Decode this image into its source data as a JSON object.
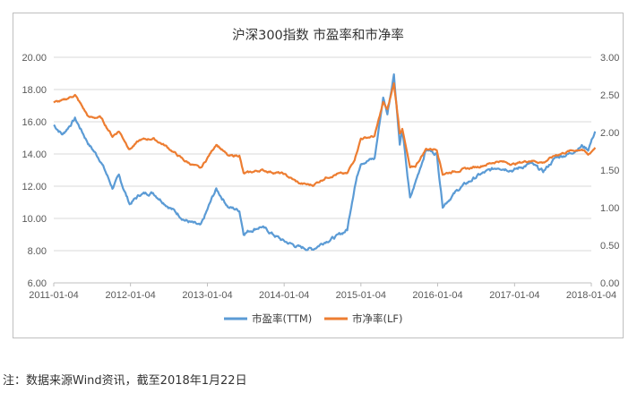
{
  "chart_data": {
    "type": "line",
    "title": "沪深300指数 市盈率和市净率",
    "x_axis": {
      "type": "date",
      "range": [
        "2011-01-04",
        "2018-01-22"
      ],
      "tick_labels": [
        "2011-01-04",
        "2012-01-04",
        "2013-01-04",
        "2014-01-04",
        "2015-01-04",
        "2016-01-04",
        "2017-01-04",
        "2018-01-04"
      ]
    },
    "y_left": {
      "range": [
        6,
        20
      ],
      "tick_labels": [
        "6.00",
        "8.00",
        "10.00",
        "12.00",
        "14.00",
        "16.00",
        "18.00",
        "20.00"
      ]
    },
    "y_right": {
      "range": [
        0,
        3
      ],
      "tick_labels": [
        "0.00",
        "0.50",
        "1.00",
        "1.50",
        "2.00",
        "2.50",
        "3.00"
      ]
    },
    "grid": true,
    "legend": "bottom",
    "series": [
      {
        "name": "市盈率(TTM)",
        "axis": "left",
        "color": "#5b9bd5",
        "points": [
          [
            "2011-01-04",
            15.8
          ],
          [
            "2011-02-15",
            15.2
          ],
          [
            "2011-04-15",
            16.2
          ],
          [
            "2011-06-20",
            14.6
          ],
          [
            "2011-08-15",
            13.6
          ],
          [
            "2011-10-10",
            11.9
          ],
          [
            "2011-11-10",
            12.6
          ],
          [
            "2011-12-31",
            10.9
          ],
          [
            "2012-02-20",
            11.5
          ],
          [
            "2012-04-20",
            11.6
          ],
          [
            "2012-06-20",
            10.9
          ],
          [
            "2012-09-20",
            9.9
          ],
          [
            "2012-12-03",
            9.5
          ],
          [
            "2013-01-31",
            11.4
          ],
          [
            "2013-02-15",
            11.8
          ],
          [
            "2013-04-15",
            10.7
          ],
          [
            "2013-06-05",
            10.5
          ],
          [
            "2013-06-25",
            9.1
          ],
          [
            "2013-09-15",
            9.5
          ],
          [
            "2013-12-31",
            8.6
          ],
          [
            "2014-03-20",
            8.2
          ],
          [
            "2014-05-20",
            8.1
          ],
          [
            "2014-07-20",
            8.6
          ],
          [
            "2014-09-15",
            8.9
          ],
          [
            "2014-10-31",
            9.3
          ],
          [
            "2014-12-05",
            12.0
          ],
          [
            "2015-01-04",
            13.5
          ],
          [
            "2015-03-10",
            13.7
          ],
          [
            "2015-04-20",
            17.5
          ],
          [
            "2015-05-10",
            16.5
          ],
          [
            "2015-06-10",
            19.0
          ],
          [
            "2015-07-08",
            14.6
          ],
          [
            "2015-07-20",
            15.5
          ],
          [
            "2015-08-26",
            11.2
          ],
          [
            "2015-09-20",
            12.2
          ],
          [
            "2015-11-10",
            14.3
          ],
          [
            "2015-12-31",
            14.0
          ],
          [
            "2016-01-28",
            10.8
          ],
          [
            "2016-04-20",
            11.9
          ],
          [
            "2016-07-20",
            12.7
          ],
          [
            "2016-10-20",
            13.2
          ],
          [
            "2016-12-31",
            13.0
          ],
          [
            "2017-03-20",
            13.4
          ],
          [
            "2017-05-20",
            12.9
          ],
          [
            "2017-07-20",
            13.8
          ],
          [
            "2017-09-20",
            14.0
          ],
          [
            "2017-11-20",
            14.5
          ],
          [
            "2017-12-20",
            14.3
          ],
          [
            "2018-01-22",
            15.4
          ]
        ]
      },
      {
        "name": "市净率(LF)",
        "axis": "right",
        "color": "#ed7d31",
        "points": [
          [
            "2011-01-04",
            2.4
          ],
          [
            "2011-02-15",
            2.42
          ],
          [
            "2011-04-15",
            2.5
          ],
          [
            "2011-06-20",
            2.2
          ],
          [
            "2011-08-15",
            2.2
          ],
          [
            "2011-10-10",
            1.95
          ],
          [
            "2011-11-10",
            2.02
          ],
          [
            "2011-12-31",
            1.78
          ],
          [
            "2012-02-20",
            1.9
          ],
          [
            "2012-04-20",
            1.92
          ],
          [
            "2012-06-20",
            1.82
          ],
          [
            "2012-09-20",
            1.62
          ],
          [
            "2012-12-03",
            1.52
          ],
          [
            "2013-01-31",
            1.78
          ],
          [
            "2013-02-15",
            1.85
          ],
          [
            "2013-04-15",
            1.68
          ],
          [
            "2013-06-05",
            1.7
          ],
          [
            "2013-06-25",
            1.45
          ],
          [
            "2013-09-15",
            1.5
          ],
          [
            "2013-12-31",
            1.45
          ],
          [
            "2014-03-20",
            1.32
          ],
          [
            "2014-05-20",
            1.3
          ],
          [
            "2014-07-20",
            1.4
          ],
          [
            "2014-09-15",
            1.45
          ],
          [
            "2014-10-31",
            1.45
          ],
          [
            "2014-12-05",
            1.65
          ],
          [
            "2015-01-04",
            1.92
          ],
          [
            "2015-03-10",
            1.95
          ],
          [
            "2015-04-20",
            2.4
          ],
          [
            "2015-05-10",
            2.3
          ],
          [
            "2015-06-10",
            2.65
          ],
          [
            "2015-07-08",
            2.0
          ],
          [
            "2015-07-20",
            2.05
          ],
          [
            "2015-08-26",
            1.52
          ],
          [
            "2015-09-20",
            1.55
          ],
          [
            "2015-11-10",
            1.78
          ],
          [
            "2015-12-31",
            1.78
          ],
          [
            "2016-01-28",
            1.45
          ],
          [
            "2016-04-20",
            1.5
          ],
          [
            "2016-07-20",
            1.55
          ],
          [
            "2016-10-20",
            1.62
          ],
          [
            "2016-12-31",
            1.58
          ],
          [
            "2017-03-20",
            1.63
          ],
          [
            "2017-05-20",
            1.6
          ],
          [
            "2017-07-20",
            1.7
          ],
          [
            "2017-09-20",
            1.75
          ],
          [
            "2017-11-20",
            1.78
          ],
          [
            "2017-12-20",
            1.7
          ],
          [
            "2018-01-22",
            1.8
          ]
        ]
      }
    ]
  },
  "note": "注：数据来源Wind资讯，截至2018年1月22日"
}
